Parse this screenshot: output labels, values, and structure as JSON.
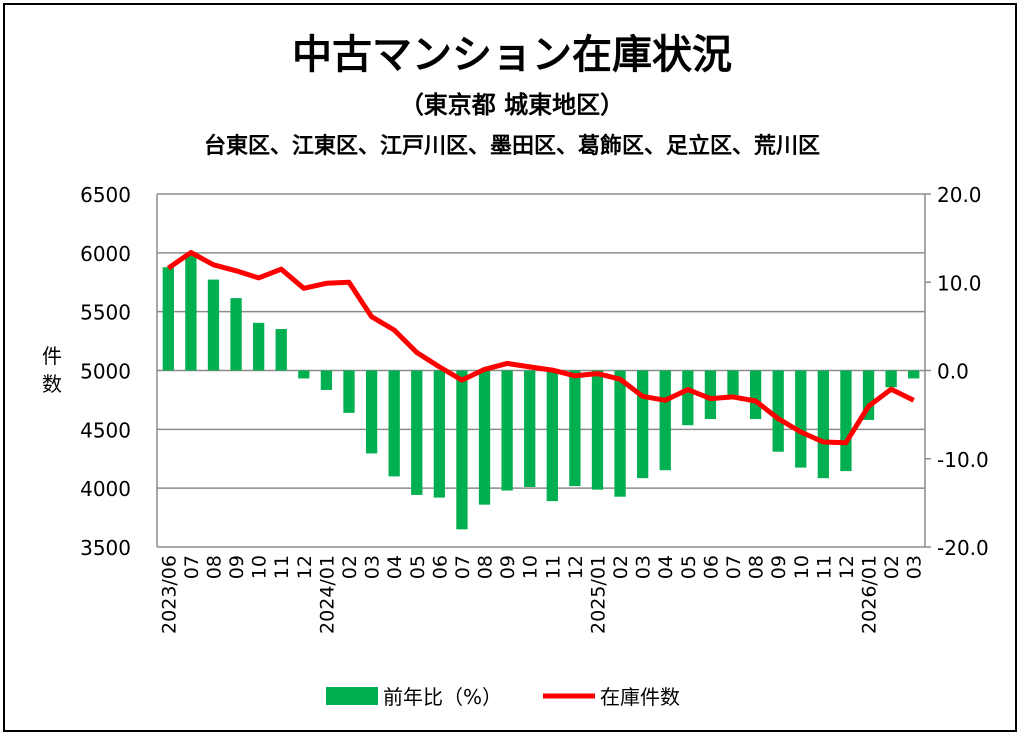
{
  "chart_data": {
    "type": "bar+line",
    "title": "中古マンション在庫状況",
    "subtitle": "（東京都 城東地区）",
    "subtitle2": "台東区、江東区、江戸川区、墨田区、葛飾区、足立区、荒川区",
    "ylabel": "件数",
    "ylabel_chars": [
      "件",
      "数"
    ],
    "ylim_left": [
      3500,
      6500
    ],
    "left_ticks": [
      "6500",
      "6000",
      "5500",
      "5000",
      "4500",
      "4000",
      "3500"
    ],
    "left_tick_values": [
      6500,
      6000,
      5500,
      5000,
      4500,
      4000,
      3500
    ],
    "ylim_right": [
      -20,
      20
    ],
    "right_ticks": [
      "20.0",
      "10.0",
      "0.0",
      "-10.0",
      "-20.0"
    ],
    "right_tick_values": [
      20,
      10,
      0,
      -10,
      -20
    ],
    "grid": true,
    "legend_position": "bottom",
    "categories": [
      "2023/06",
      "07",
      "08",
      "09",
      "10",
      "11",
      "12",
      "2024/01",
      "02",
      "03",
      "04",
      "05",
      "06",
      "07",
      "08",
      "09",
      "10",
      "11",
      "12",
      "2025/01",
      "02",
      "03",
      "04",
      "05",
      "06",
      "07",
      "08",
      "09",
      "10",
      "11",
      "12",
      "2026/01",
      "02",
      "03"
    ],
    "series": [
      {
        "name": "前年比（%）",
        "type": "bar",
        "axis": "right",
        "color": "#00b050",
        "values": [
          11.7,
          13.1,
          10.3,
          8.2,
          5.4,
          4.7,
          -0.9,
          -2.2,
          -4.8,
          -9.4,
          -12.0,
          -14.1,
          -14.4,
          -18.0,
          -15.2,
          -13.6,
          -13.2,
          -14.8,
          -13.1,
          -13.5,
          -14.3,
          -12.2,
          -11.3,
          -6.2,
          -5.5,
          -3.0,
          -5.5,
          -9.2,
          -11.0,
          -12.2,
          -11.4,
          -5.6,
          -1.9,
          -0.9
        ]
      },
      {
        "name": "在庫件数",
        "type": "line",
        "axis": "left",
        "color": "#ff0000",
        "values": [
          5869,
          6003,
          5898,
          5847,
          5787,
          5861,
          5699,
          5741,
          5750,
          5457,
          5344,
          5153,
          5031,
          4918,
          5009,
          5060,
          5031,
          5003,
          4955,
          4974,
          4926,
          4781,
          4747,
          4838,
          4761,
          4776,
          4741,
          4591,
          4477,
          4392,
          4386,
          4696,
          4841,
          4747
        ]
      }
    ]
  }
}
